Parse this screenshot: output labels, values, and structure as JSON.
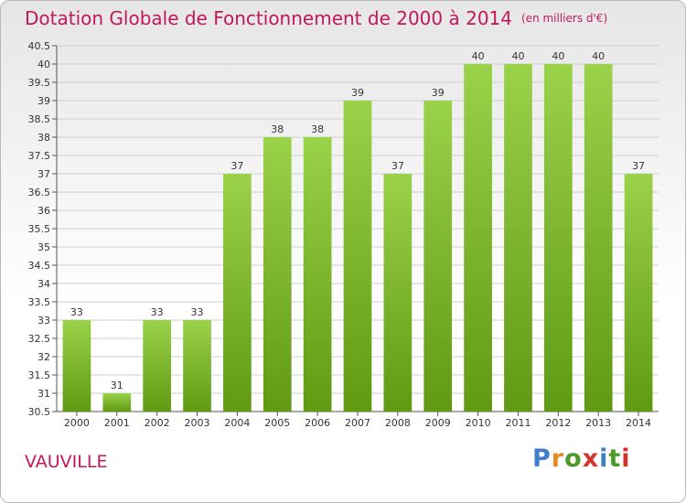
{
  "header": {
    "title": "Dotation Globale de Fonctionnement de 2000 à 2014",
    "unit": "(en milliers d'€)"
  },
  "footer": {
    "commune": "VAUVILLE",
    "logo": "Proxiti"
  },
  "colors": {
    "title": "#c2185b",
    "bar_top": "#9ad24a",
    "bar_bottom": "#5f9a12",
    "logo": [
      "#3f7fc8",
      "#e58a1f",
      "#4b9a2a",
      "#d4322c",
      "#3f7fc8",
      "#4b9a2a",
      "#d4322c"
    ]
  },
  "chart_data": {
    "type": "bar",
    "categories": [
      "2000",
      "2001",
      "2002",
      "2003",
      "2004",
      "2005",
      "2006",
      "2007",
      "2008",
      "2009",
      "2010",
      "2011",
      "2012",
      "2013",
      "2014"
    ],
    "values": [
      33,
      31,
      33,
      33,
      37,
      38,
      38,
      39,
      37,
      39,
      40,
      40,
      40,
      40,
      37
    ],
    "ylim": [
      30.5,
      40.5
    ],
    "yticks": [
      "30.5",
      "31",
      "31.5",
      "32",
      "32.5",
      "33",
      "33.5",
      "34",
      "34.5",
      "35",
      "35.5",
      "36",
      "36.5",
      "37",
      "37.5",
      "38",
      "38.5",
      "39",
      "39.5",
      "40",
      "40.5"
    ],
    "grid": true,
    "title": "Dotation Globale de Fonctionnement de 2000 à 2014",
    "xlabel": "",
    "ylabel": ""
  }
}
